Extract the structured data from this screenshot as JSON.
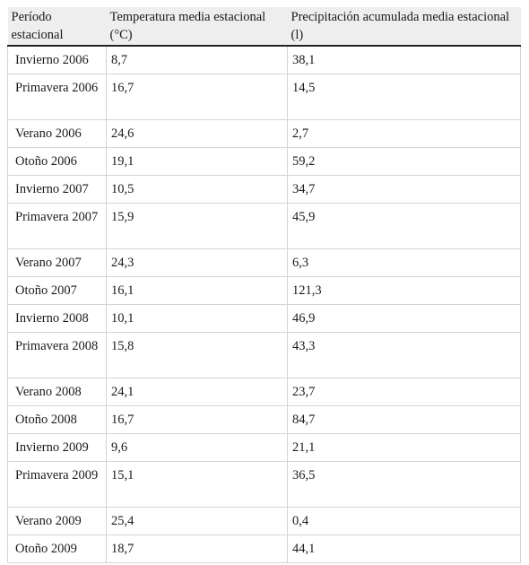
{
  "table": {
    "headers": [
      "Período estacional",
      "Temperatura media estacional (°C)",
      "Precipitación acumulada media estacional (l)"
    ],
    "rows": [
      {
        "period": "Invierno 2006",
        "temp": "8,7",
        "prec": "38,1"
      },
      {
        "period": "Primavera 2006",
        "temp": "16,7",
        "prec": "14,5"
      },
      {
        "period": "Verano 2006",
        "temp": "24,6",
        "prec": "2,7"
      },
      {
        "period": "Otoño 2006",
        "temp": "19,1",
        "prec": "59,2"
      },
      {
        "period": "Invierno 2007",
        "temp": "10,5",
        "prec": "34,7"
      },
      {
        "period": "Primavera 2007",
        "temp": "15,9",
        "prec": "45,9"
      },
      {
        "period": "Verano 2007",
        "temp": "24,3",
        "prec": "6,3"
      },
      {
        "period": "Otoño 2007",
        "temp": "16,1",
        "prec": "121,3"
      },
      {
        "period": "Invierno 2008",
        "temp": "10,1",
        "prec": "46,9"
      },
      {
        "period": "Primavera 2008",
        "temp": "15,8",
        "prec": "43,3"
      },
      {
        "period": "Verano 2008",
        "temp": "24,1",
        "prec": "23,7"
      },
      {
        "period": "Otoño 2008",
        "temp": "16,7",
        "prec": "84,7"
      },
      {
        "period": "Invierno 2009",
        "temp": "9,6",
        "prec": "21,1"
      },
      {
        "period": "Primavera 2009",
        "temp": "15,1",
        "prec": "36,5"
      },
      {
        "period": "Verano 2009",
        "temp": "25,4",
        "prec": "0,4"
      },
      {
        "period": "Otoño 2009",
        "temp": "18,7",
        "prec": "44,1"
      }
    ]
  }
}
